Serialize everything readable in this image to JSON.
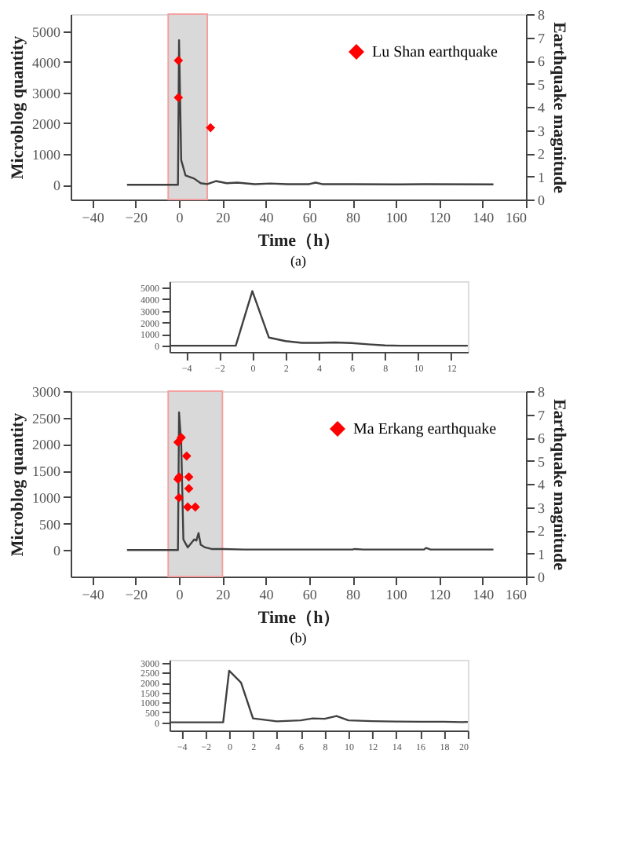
{
  "chart_data": [
    {
      "type": "line",
      "xlabel": "Time（h）",
      "ylabel": "Microblog quantity",
      "y2label": "Earthquake magnitude",
      "annotations": [
        "(a)"
      ],
      "xlim": [
        -50,
        160
      ],
      "xticks": [
        -40,
        -20,
        0,
        20,
        40,
        60,
        80,
        100,
        120,
        140,
        160
      ],
      "ylim": [
        -480,
        5550
      ],
      "yticks": [
        0,
        1000,
        2000,
        3000,
        4000,
        5000
      ],
      "y2lim": [
        0,
        8
      ],
      "y2ticks": [
        0,
        1,
        2,
        3,
        4,
        5,
        6,
        7,
        8
      ],
      "legend": "top right",
      "bands": [
        {
          "axis": "x",
          "from": -5,
          "to": 13,
          "color": "#d9d9d9"
        }
      ],
      "series": [
        {
          "color": "#404040",
          "x": [
            -24,
            -0.5,
            0,
            1,
            3,
            5,
            7,
            10,
            13,
            17,
            22,
            27,
            35,
            42,
            50,
            60,
            63,
            66,
            80,
            100,
            113,
            145
          ],
          "values": [
            0,
            0,
            4700,
            800,
            300,
            250,
            200,
            50,
            20,
            120,
            50,
            70,
            20,
            40,
            20,
            20,
            70,
            20,
            20,
            10,
            20,
            10
          ]
        },
        {
          "type": "scatter",
          "marker": "diamond",
          "axis": "y2",
          "name": "Lu Shan earthquake",
          "color": "#ff0000",
          "x": [
            -0.3,
            -0.3,
            14.5
          ],
          "values": [
            6.0,
            4.4,
            3.1
          ]
        }
      ]
    },
    {
      "type": "line",
      "xlim": [
        -5,
        13
      ],
      "xticks": [
        -4,
        -2,
        0,
        2,
        4,
        6,
        8,
        10,
        12
      ],
      "ylim": [
        -530,
        5550
      ],
      "yticks": [
        0,
        1000,
        2000,
        3000,
        4000,
        5000
      ],
      "series": [
        {
          "color": "#404040",
          "x": [
            -5,
            -1,
            0,
            1,
            2,
            3,
            4,
            5,
            6,
            7,
            8,
            9,
            13
          ],
          "values": [
            0,
            0,
            4700,
            700,
            400,
            250,
            250,
            280,
            230,
            120,
            30,
            0,
            0
          ]
        }
      ]
    },
    {
      "type": "line",
      "xlabel": "Time（h）",
      "ylabel": "Microblog quantity",
      "y2label": "Earthquake magnitude",
      "annotations": [
        "(b)"
      ],
      "xlim": [
        -50,
        160
      ],
      "xticks": [
        -40,
        -20,
        0,
        20,
        40,
        60,
        80,
        100,
        120,
        140,
        160
      ],
      "ylim": [
        -500,
        3000
      ],
      "yticks": [
        0,
        500,
        1000,
        1500,
        2000,
        2500,
        3000
      ],
      "y2lim": [
        0,
        8
      ],
      "y2ticks": [
        0,
        1,
        2,
        3,
        4,
        5,
        6,
        7,
        8
      ],
      "legend": "top right",
      "bands": [
        {
          "axis": "x",
          "from": -5,
          "to": 20,
          "color": "#d9d9d9"
        }
      ],
      "series": [
        {
          "color": "#404040",
          "x": [
            -24,
            -0.5,
            0,
            1,
            2,
            4,
            7,
            8,
            9,
            10,
            12,
            15,
            20,
            30,
            80,
            81,
            85,
            113,
            114,
            116,
            145
          ],
          "values": [
            0,
            0,
            2600,
            2000,
            200,
            50,
            200,
            180,
            320,
            100,
            50,
            20,
            20,
            10,
            10,
            20,
            10,
            10,
            40,
            10,
            10
          ]
        },
        {
          "type": "scatter",
          "marker": "diamond",
          "axis": "y2",
          "name": "Ma Erkang earthquake",
          "color": "#ff0000",
          "x": [
            -0.5,
            1,
            3.5,
            0,
            -0.5,
            4.5,
            4.5,
            0,
            4,
            7.5
          ],
          "values": [
            5.8,
            6.0,
            5.2,
            4.3,
            4.2,
            4.3,
            3.8,
            3.4,
            3.0,
            3.0
          ]
        }
      ]
    },
    {
      "type": "line",
      "xlim": [
        -5,
        20
      ],
      "xticks": [
        -4,
        -2,
        0,
        2,
        4,
        6,
        8,
        10,
        12,
        14,
        16,
        18,
        20
      ],
      "ylim": [
        -410,
        3150
      ],
      "yticks": [
        0,
        500,
        1000,
        1500,
        2000,
        2500,
        3000
      ],
      "series": [
        {
          "color": "#404040",
          "x": [
            -5,
            -0.5,
            0,
            1,
            2,
            4,
            6,
            7,
            8,
            9,
            10,
            12,
            14,
            16,
            18,
            19.5,
            20
          ],
          "values": [
            0,
            0,
            2600,
            2000,
            200,
            50,
            100,
            200,
            180,
            320,
            100,
            60,
            40,
            30,
            30,
            10,
            20
          ]
        }
      ]
    }
  ]
}
